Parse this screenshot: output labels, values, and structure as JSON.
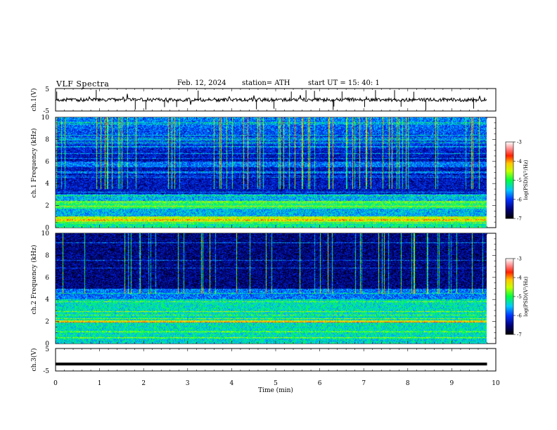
{
  "header": {
    "title": "VLF  Spectra",
    "date": "Feb. 12, 2024",
    "station": "station= ATH",
    "start_ut": "start  UT  =    15: 40: 1"
  },
  "chart_data": [
    {
      "type": "line",
      "name": "ch1-waveform",
      "ylabel": "ch.1(V)",
      "ylim": [
        -5,
        5
      ],
      "yticks": [
        "5",
        "-5"
      ],
      "xlim": [
        0,
        10
      ],
      "approx_level_v": 0
    },
    {
      "type": "heatmap",
      "name": "ch1-spectrogram",
      "ylabel": "ch.1 Frequency  (kHz)",
      "ylim": [
        0,
        10
      ],
      "yticks": [
        "0",
        "2",
        "4",
        "6",
        "8",
        "10"
      ],
      "xlim": [
        0,
        9.8
      ],
      "colorbar": {
        "label": "log(PSD)(V²/Hz)",
        "range": [
          -7,
          -3
        ],
        "ticks": [
          "-3",
          "-4",
          "-5",
          "-6",
          "-7"
        ]
      },
      "features": {
        "strong_band_khz": [
          0.5,
          1.0
        ],
        "band_near_2khz": [
          1.7,
          2.4
        ],
        "quiet_band_khz": [
          3.0,
          5.5
        ],
        "impulsive_noise_khz": [
          6.0,
          10.0
        ]
      }
    },
    {
      "type": "heatmap",
      "name": "ch2-spectrogram",
      "ylabel": "ch.2 Frequency  (kHz)",
      "ylim": [
        0,
        10
      ],
      "yticks": [
        "0",
        "2",
        "4",
        "6",
        "8",
        "10"
      ],
      "xlim": [
        0,
        9.8
      ],
      "colorbar": {
        "label": "log(PSD)(V²/Hz)",
        "range": [
          -7,
          -3
        ],
        "ticks": [
          "-3",
          "-4",
          "-5",
          "-6",
          "-7"
        ]
      },
      "features": {
        "strong_band_khz": [
          1.9,
          2.1
        ],
        "elevated_band_khz": [
          0.5,
          4.0
        ],
        "quiet_band_khz": [
          5.0,
          10.0
        ]
      }
    },
    {
      "type": "line",
      "name": "ch3-waveform",
      "ylabel": "ch.3(V)",
      "ylim": [
        -5,
        5
      ],
      "yticks": [
        "5",
        "-5"
      ],
      "xlim": [
        0,
        10
      ],
      "approx_level_v": -1.9
    }
  ],
  "xaxis": {
    "label": "Time  (min)",
    "ticks": [
      "0",
      "1",
      "2",
      "3",
      "4",
      "5",
      "6",
      "7",
      "8",
      "9",
      "10"
    ]
  }
}
